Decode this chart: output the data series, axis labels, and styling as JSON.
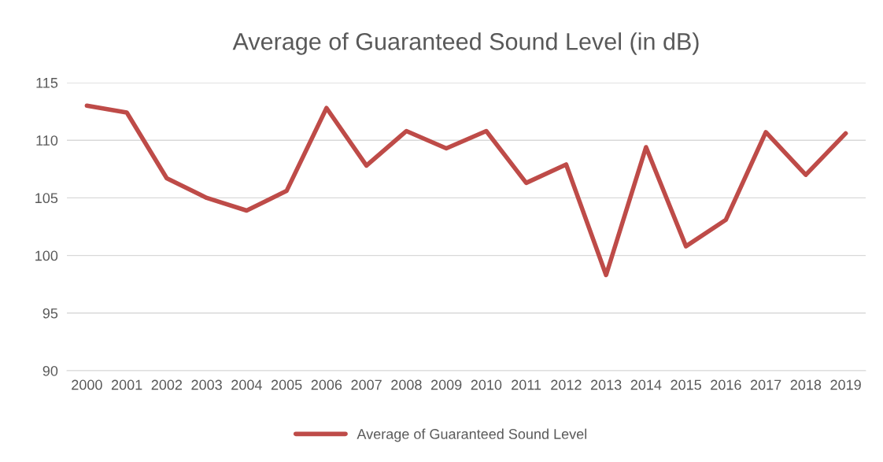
{
  "chart_data": {
    "type": "line",
    "title": "Average of Guaranteed Sound Level (in dB)",
    "categories": [
      "2000",
      "2001",
      "2002",
      "2003",
      "2004",
      "2005",
      "2006",
      "2007",
      "2008",
      "2009",
      "2010",
      "2011",
      "2012",
      "2013",
      "2014",
      "2015",
      "2016",
      "2017",
      "2018",
      "2019"
    ],
    "series": [
      {
        "name": "Average of Guaranteed Sound Level",
        "color": "#be4b48",
        "values": [
          113.0,
          112.4,
          106.7,
          105.0,
          103.9,
          105.6,
          112.8,
          107.8,
          110.8,
          109.3,
          110.8,
          106.3,
          107.9,
          98.3,
          109.4,
          100.8,
          103.1,
          110.7,
          107.0,
          110.6
        ]
      }
    ],
    "ylim": [
      90,
      115
    ],
    "yticks": [
      90,
      95,
      100,
      105,
      110,
      115
    ],
    "grid": "y",
    "legend": "bottom",
    "marker": "none",
    "line_style": "solid"
  }
}
